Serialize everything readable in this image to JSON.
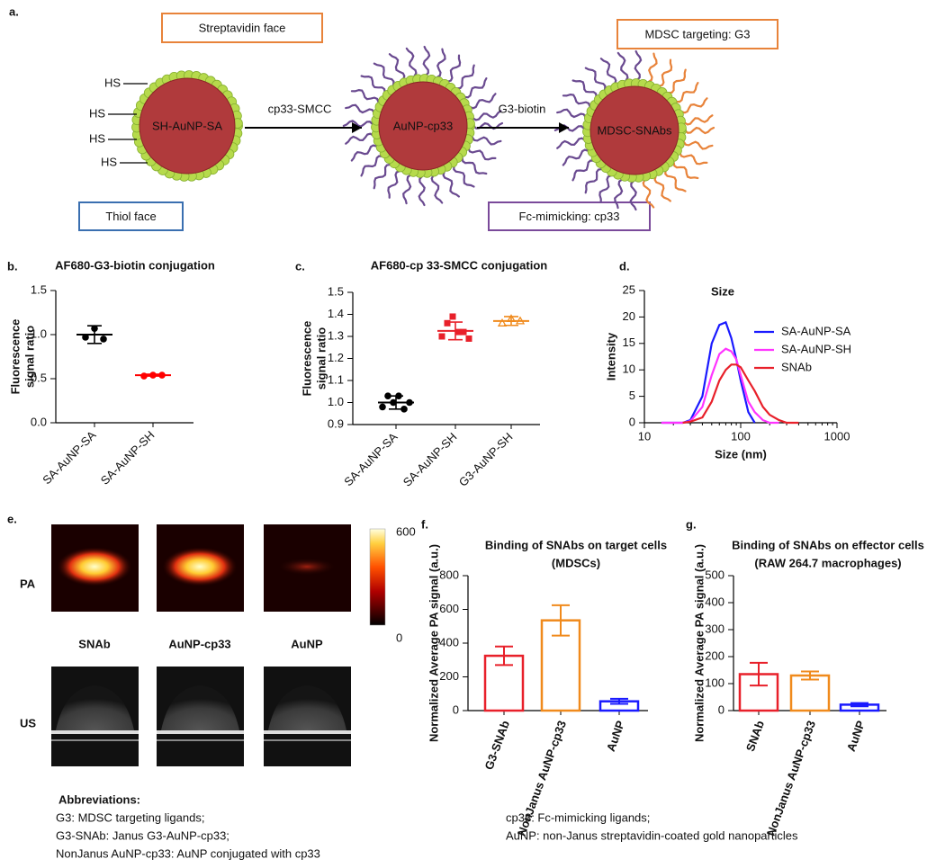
{
  "panel_labels": [
    "a.",
    "b.",
    "c.",
    "d.",
    "e.",
    "f.",
    "g."
  ],
  "schematic": {
    "face_labels": {
      "streptavidin": "Streptavidin face",
      "thiol": "Thiol face",
      "targeting": "MDSC targeting: G3",
      "fc": "Fc-mimicking: cp33"
    },
    "particles": [
      "SH-AuNP-SA",
      "AuNP-cp33",
      "MDSC-SNAbs"
    ],
    "steps": [
      "cp33-SMCC",
      "G3-biotin"
    ],
    "thiol_groups": [
      "HS",
      "HS",
      "HS",
      "HS"
    ]
  },
  "chart_data": [
    {
      "type": "dotplot",
      "title": [
        "AF680-G3-biotin conjugation"
      ],
      "ylabel": [
        "Fluorescence",
        "signal ratio"
      ],
      "categories": [
        "SA-AuNP-SA",
        "SA-AuNP-SH"
      ],
      "points": [
        [
          0.97,
          1.07,
          0.95
        ],
        [
          0.53,
          0.54,
          0.54
        ]
      ],
      "means": [
        1.0,
        0.54
      ],
      "errors": [
        0.1,
        0.01
      ],
      "colors": [
        "#000000",
        "#ff0000"
      ],
      "markers": [
        "circle",
        "circle"
      ],
      "ylim": [
        0,
        1.5
      ],
      "yticks": [
        {
          "value": 0,
          "label": "0.0"
        },
        {
          "value": 0.5,
          "label": "0.5"
        },
        {
          "value": 1,
          "label": "1.0"
        },
        {
          "value": 1.5,
          "label": "1.5"
        }
      ]
    },
    {
      "type": "dotplot",
      "title": [
        "AF680-cp 33-SMCC conjugation"
      ],
      "ylabel": [
        "Fluorescence",
        "signal ratio"
      ],
      "categories": [
        "SA-AuNP-SA",
        "SA-AuNP-SH",
        "G3-AuNP-SH"
      ],
      "points": [
        [
          0.98,
          1.03,
          1.0,
          1.03,
          0.97,
          1.0
        ],
        [
          1.3,
          1.36,
          1.39,
          1.32,
          1.32,
          1.29
        ],
        [
          1.36,
          1.38,
          1.37
        ]
      ],
      "means": [
        1.0,
        1.325,
        1.37
      ],
      "errors": [
        0.03,
        0.04,
        0.02
      ],
      "colors": [
        "#000000",
        "#e8202a",
        "#f08a1c"
      ],
      "markers": [
        "circle",
        "square",
        "triangle"
      ],
      "ylim": [
        0.9,
        1.5
      ],
      "yticks": [
        0.9,
        {
          "value": 1,
          "label": "1.0"
        },
        1.1,
        1.2,
        1.3,
        1.4,
        1.5
      ]
    },
    {
      "type": "line",
      "title": [
        "Size"
      ],
      "ylabel": [
        "Intensity"
      ],
      "xlabel": "Size (nm)",
      "xscale": "log",
      "x": [
        15,
        20,
        25,
        30,
        40,
        50,
        60,
        70,
        80,
        90,
        100,
        120,
        140,
        170,
        200,
        250,
        300,
        400,
        500
      ],
      "series": [
        {
          "name": "SA-AuNP-SA",
          "color": "#1a1aff",
          "values": [
            0,
            0,
            0,
            0.5,
            5,
            15,
            18.5,
            19,
            16,
            12,
            8,
            2,
            0,
            null,
            null,
            null,
            null,
            null,
            null
          ]
        },
        {
          "name": "SA-AuNP-SH",
          "color": "#ff33ff",
          "values": [
            0,
            0,
            0,
            0.3,
            3,
            9,
            13,
            14,
            13.5,
            12,
            9,
            4,
            2,
            0.5,
            0,
            0,
            null,
            null,
            null
          ]
        },
        {
          "name": "SNAb",
          "color": "#e8202a",
          "values": [
            null,
            null,
            0,
            0.2,
            1,
            4,
            8,
            10,
            11,
            11,
            10.5,
            8,
            6,
            3,
            1.5,
            0.5,
            0,
            0,
            null
          ]
        }
      ],
      "xlim": [
        10,
        1000
      ],
      "xticks": [
        10,
        100,
        1000
      ],
      "ylim": [
        0,
        25
      ],
      "yticks": [
        0,
        5,
        10,
        15,
        20,
        25
      ],
      "legend": "right"
    },
    {
      "type": "bar",
      "title": [
        "Binding of SNAbs on target cells",
        "(MDSCs)"
      ],
      "ylabel": [
        "Normalized Average PA signal (a.u.)"
      ],
      "categories": [
        "G3-SNAb",
        "NonJanus AuNP-cp33",
        "AuNP"
      ],
      "values": [
        325,
        535,
        55
      ],
      "errors": [
        55,
        90,
        15
      ],
      "colors": [
        "#e8202a",
        "#f08a1c",
        "#1a1aff"
      ],
      "ylim": [
        0,
        800
      ],
      "yticks": [
        0,
        200,
        400,
        600,
        800
      ]
    },
    {
      "type": "bar",
      "title": [
        "Binding of SNAbs on effector cells",
        "(RAW 264.7 macrophages)"
      ],
      "ylabel": [
        "Normalized Average PA signal (a.u.)"
      ],
      "categories": [
        "SNAb",
        "NonJanus AuNP-cp33",
        "AuNP"
      ],
      "values": [
        135,
        130,
        22
      ],
      "errors": [
        42,
        15,
        6
      ],
      "colors": [
        "#e8202a",
        "#f08a1c",
        "#1a1aff"
      ],
      "ylim": [
        0,
        500
      ],
      "yticks": [
        0,
        100,
        200,
        300,
        400,
        500
      ]
    }
  ],
  "imaging": {
    "rows": [
      "PA",
      "US"
    ],
    "samples": [
      "SNAb",
      "AuNP-cp33",
      "AuNP"
    ],
    "colorbar_range": [
      0,
      600
    ]
  },
  "abbreviations": {
    "heading": "Abbreviations:",
    "items": [
      "G3: MDSC targeting ligands;",
      "G3-SNAb: Janus G3-AuNP-cp33;",
      "NonJanus AuNP-cp33: AuNP conjugated with cp33",
      "cp33: Fc-mimicking ligands;",
      "AuNP: non-Janus streptavidin-coated gold nanoparticles"
    ]
  }
}
